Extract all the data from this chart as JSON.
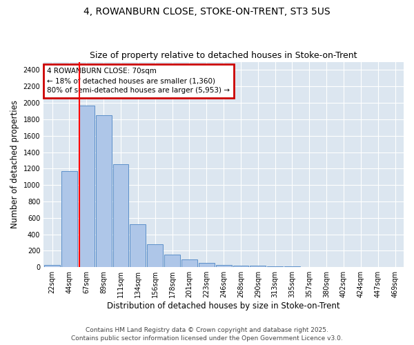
{
  "title1": "4, ROWANBURN CLOSE, STOKE-ON-TRENT, ST3 5US",
  "title2": "Size of property relative to detached houses in Stoke-on-Trent",
  "xlabel": "Distribution of detached houses by size in Stoke-on-Trent",
  "ylabel": "Number of detached properties",
  "bar_labels": [
    "22sqm",
    "44sqm",
    "67sqm",
    "89sqm",
    "111sqm",
    "134sqm",
    "156sqm",
    "178sqm",
    "201sqm",
    "223sqm",
    "246sqm",
    "268sqm",
    "290sqm",
    "313sqm",
    "335sqm",
    "357sqm",
    "380sqm",
    "402sqm",
    "424sqm",
    "447sqm",
    "469sqm"
  ],
  "bar_values": [
    30,
    1170,
    1970,
    1850,
    1250,
    520,
    280,
    150,
    90,
    50,
    30,
    20,
    15,
    10,
    8,
    5,
    4,
    3,
    2,
    2,
    5
  ],
  "bar_color": "#aec6e8",
  "bar_edge_color": "#5b8fc9",
  "bg_color": "#dce6f0",
  "red_line_x": 1.57,
  "annotation_text": "4 ROWANBURN CLOSE: 70sqm\n← 18% of detached houses are smaller (1,360)\n80% of semi-detached houses are larger (5,953) →",
  "annotation_box_color": "white",
  "annotation_box_edge": "#cc0000",
  "ylim": [
    0,
    2500
  ],
  "yticks": [
    0,
    200,
    400,
    600,
    800,
    1000,
    1200,
    1400,
    1600,
    1800,
    2000,
    2200,
    2400
  ],
  "footer1": "Contains HM Land Registry data © Crown copyright and database right 2025.",
  "footer2": "Contains public sector information licensed under the Open Government Licence v3.0.",
  "title_fontsize": 10,
  "subtitle_fontsize": 9,
  "axis_label_fontsize": 8.5,
  "tick_fontsize": 7,
  "footer_fontsize": 6.5,
  "annot_fontsize": 7.5
}
